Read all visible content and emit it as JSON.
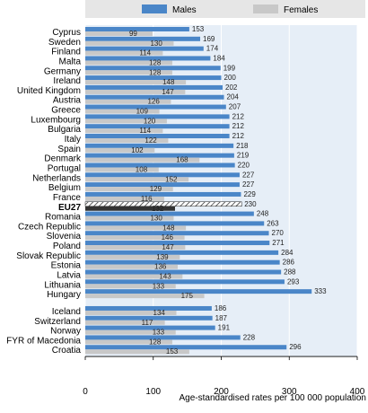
{
  "chart_data": {
    "type": "bar",
    "orientation": "horizontal",
    "xlabel": "Age-standardised rates per 100 000 population",
    "xlim": [
      0,
      400
    ],
    "xticks": [
      0,
      100,
      200,
      300,
      400
    ],
    "grid": true,
    "legend_position": "top",
    "highlight_category": "EU27",
    "colors": {
      "Males": "#4a86c8",
      "Females": "#c8c8c8",
      "plot_bg": "#e6eef7"
    },
    "series": [
      {
        "name": "Males",
        "values": [
          153,
          169,
          174,
          184,
          199,
          200,
          202,
          204,
          207,
          212,
          212,
          212,
          218,
          219,
          220,
          227,
          227,
          229,
          230,
          248,
          263,
          270,
          271,
          284,
          286,
          288,
          293,
          333,
          186,
          187,
          191,
          228,
          296
        ]
      },
      {
        "name": "Females",
        "values": [
          99,
          130,
          114,
          128,
          128,
          148,
          147,
          126,
          109,
          120,
          114,
          122,
          102,
          168,
          108,
          152,
          129,
          116,
          132,
          130,
          148,
          146,
          147,
          139,
          136,
          143,
          133,
          175,
          134,
          117,
          133,
          128,
          153
        ]
      }
    ],
    "categories": [
      "Cyprus",
      "Sweden",
      "Finland",
      "Malta",
      "Germany",
      "Ireland",
      "United Kingdom",
      "Austria",
      "Greece",
      "Luxembourg",
      "Bulgaria",
      "Italy",
      "Spain",
      "Denmark",
      "Portugal",
      "Netherlands",
      "Belgium",
      "France",
      "EU27",
      "Romania",
      "Czech Republic",
      "Slovenia",
      "Poland",
      "Slovak Republic",
      "Estonia",
      "Latvia",
      "Lithuania",
      "Hungary",
      "Iceland",
      "Switzerland",
      "Norway",
      "FYR of Macedonia",
      "Croatia"
    ]
  }
}
